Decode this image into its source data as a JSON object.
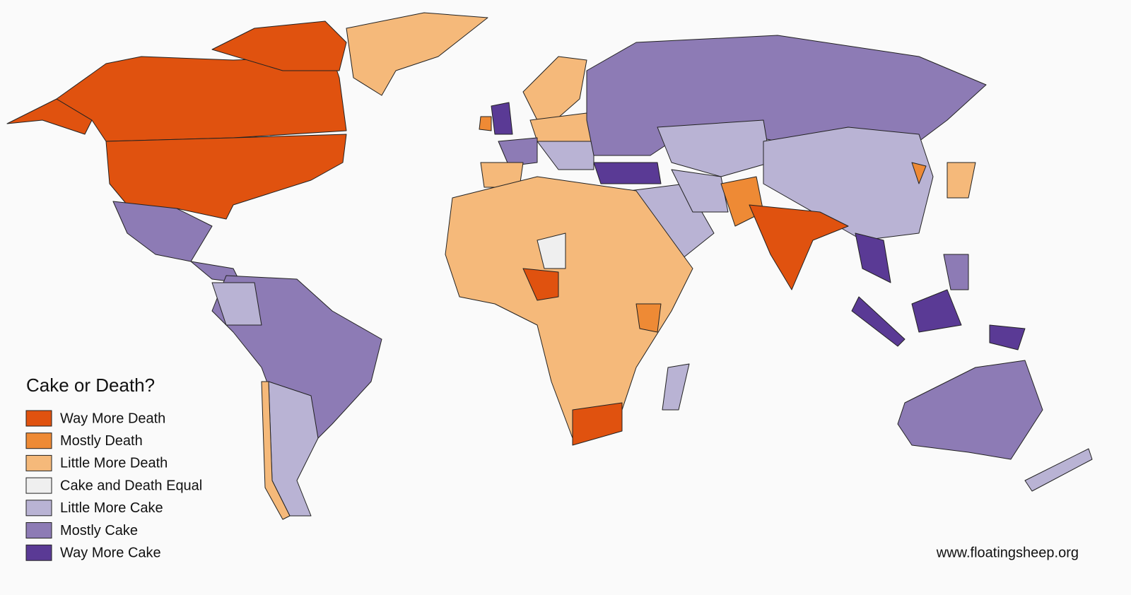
{
  "legend": {
    "title": "Cake or Death?",
    "items": [
      {
        "label": "Way More Death",
        "color": "#e0520f"
      },
      {
        "label": "Mostly Death",
        "color": "#ee8a35"
      },
      {
        "label": "Little More Death",
        "color": "#f5b97a"
      },
      {
        "label": "Cake and Death Equal",
        "color": "#efefef"
      },
      {
        "label": "Little More Cake",
        "color": "#b9b3d4"
      },
      {
        "label": "Mostly Cake",
        "color": "#8d7bb5"
      },
      {
        "label": "Way More Cake",
        "color": "#5a3a95"
      }
    ]
  },
  "source": "www.floatingsheep.org"
}
